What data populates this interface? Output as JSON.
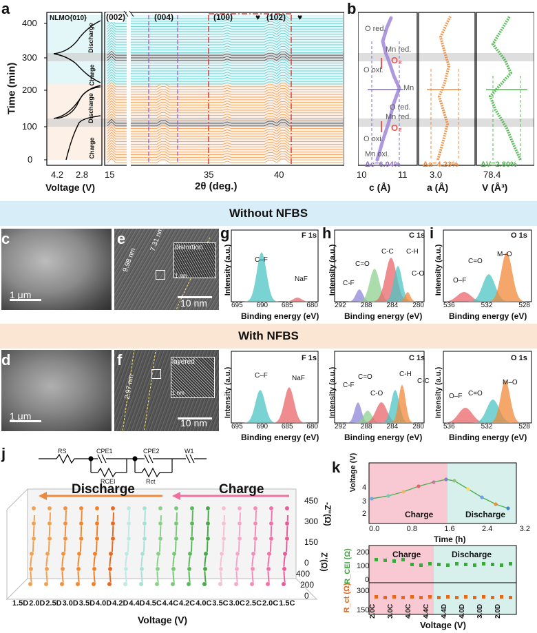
{
  "panels": {
    "a": "a",
    "b": "b",
    "c": "c",
    "d": "d",
    "e": "e",
    "f": "f",
    "g": "g",
    "h": "h",
    "i": "i",
    "j": "j",
    "k": "k"
  },
  "panel_a": {
    "ylabel": "Time (min)",
    "yticks": [
      "0",
      "100",
      "200",
      "300",
      "400"
    ],
    "voltage_xlabel": "Voltage (V)",
    "voltage_ticks": [
      "4.2",
      "2.8"
    ],
    "sample_label": "NLMO{010}",
    "state_labels": [
      "Charge",
      "Discharge",
      "Charge",
      "Discharge"
    ],
    "xrd_xlabel": "2θ (deg.)",
    "xrd_ticks": [
      "15",
      "35",
      "40"
    ],
    "peaks": [
      "(002)",
      "(004)",
      "(100)",
      "(102)"
    ],
    "heart_marker": "♥"
  },
  "panel_b": {
    "c_axis": {
      "xlabel": "c (Å)",
      "ticks": [
        "10",
        "11"
      ],
      "delta": "Δc=6.04%"
    },
    "a_axis": {
      "xlabel": "a (Å)",
      "ticks": [
        "3.0"
      ],
      "delta": "Δa=4.23%"
    },
    "v_axis": {
      "xlabel": "V (Å³)",
      "ticks": [
        "78.4"
      ],
      "delta": "ΔV=2.80%"
    },
    "annotations": [
      "O red.",
      "Mn red.",
      "O₂",
      "O oxi.",
      "Mn",
      "O red.",
      "Mn red.",
      "O₂",
      "O oxi.",
      "Mn oxi."
    ]
  },
  "section_without": "Without NFBS",
  "section_with": "With NFBS",
  "sem": {
    "scale_c": "1 μm",
    "scale_d": "1 μm",
    "scale_e": "10 nm",
    "scale_f": "10 nm",
    "inset_e": "distortion",
    "inset_f": "layered",
    "inset_scale": "1 nm",
    "thickness_e1": "7.31 nm",
    "thickness_e2": "9.98 nm",
    "thickness_f": "2.97 nm"
  },
  "xps": {
    "ylabel": "Intensity (a.u.)",
    "xlabel": "Binding energy (eV)",
    "f1s": {
      "title": "F 1s",
      "ticks": [
        "695",
        "690",
        "685",
        "680"
      ],
      "peaks_top": [
        "C–F",
        "NaF"
      ],
      "peaks_bot": [
        "C–F",
        "NaF"
      ]
    },
    "c1s": {
      "title": "C 1s",
      "ticks": [
        "292",
        "288",
        "284",
        "280"
      ],
      "peaks_top": [
        "C-F",
        "C=O",
        "C-C",
        "C-H",
        "C-O"
      ],
      "peaks_bot": [
        "C-F",
        "C=O",
        "C-O",
        "C-H",
        "C-C"
      ]
    },
    "o1s": {
      "title": "O 1s",
      "ticks": [
        "536",
        "532",
        "528"
      ],
      "peaks_top": [
        "O–F",
        "C=O",
        "M–O"
      ],
      "peaks_bot": [
        "O–F",
        "C=O",
        "M–O"
      ]
    }
  },
  "panel_j": {
    "circuit": [
      "RS",
      "CPE1",
      "RCEI",
      "CPE2",
      "Rct",
      "W1"
    ],
    "discharge": "Discharge",
    "charge": "Charge",
    "xlabel": "Voltage (V)",
    "xticks": [
      "1.5D",
      "2.0D",
      "2.5D",
      "3.0D",
      "3.5D",
      "4.0D",
      "4.2D",
      "4.4D",
      "4.5C",
      "4.4C",
      "4.2C",
      "4.0C",
      "3.5C",
      "3.0C",
      "2.5C",
      "2.0C",
      "1.5C"
    ],
    "zimag_label": "-Z''(Ω)",
    "zimag_ticks": [
      "0",
      "150",
      "300",
      "450"
    ],
    "zreal_label": "Z'(Ω)",
    "zreal_ticks": [
      "0",
      "200",
      "400"
    ]
  },
  "panel_k": {
    "top": {
      "ylabel": "Voltage (V)",
      "yticks": [
        "2",
        "3",
        "4"
      ],
      "xlabel": "Time (h)",
      "xticks": [
        "0.0",
        "0.8",
        "1.6",
        "2.4",
        "3.2"
      ],
      "charge": "Charge",
      "discharge": "Discharge"
    },
    "mid": {
      "ylabel": "R_CEI (Ω)",
      "yticks": [
        "0",
        "100",
        "200"
      ],
      "charge": "Charge",
      "discharge": "Discharge"
    },
    "bot": {
      "ylabel": "R_ct (Ω)",
      "yticks": [
        "150",
        "300"
      ],
      "xlabel": "Voltage (V)",
      "xticks": [
        "2.0C",
        "3.0C",
        "4.0C",
        "4.4C",
        "4.4D",
        "4.0D",
        "3.0D",
        "2.0D"
      ]
    }
  },
  "colors": {
    "orange": "#f0883a",
    "cyan": "#4cc4c4",
    "purple": "#8c6fc8",
    "green": "#4cb84c",
    "pink": "#f06ea0",
    "red": "#d93b3b",
    "band_blue": "#d7eef8",
    "band_peach": "#fbe6d4"
  }
}
